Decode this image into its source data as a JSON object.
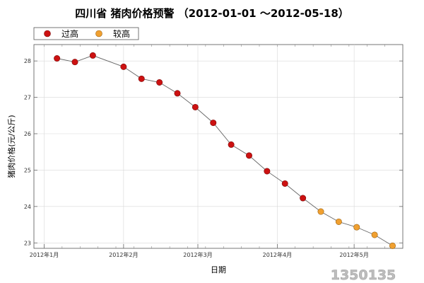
{
  "chart_data": {
    "type": "line",
    "title": "四川省 猪肉价格预警 （2012-01-01 ～2012-05-18）",
    "xlabel": "日期",
    "ylabel": "猪肉价格(元/公斤)",
    "ylim": [
      22.85,
      28.45
    ],
    "y_ticks": [
      "23",
      "24",
      "25",
      "26",
      "27",
      "28"
    ],
    "x_ticks": [
      {
        "label": "2012年1月",
        "date": "2012-01-01"
      },
      {
        "label": "2012年2月",
        "date": "2012-02-01"
      },
      {
        "label": "2012年3月",
        "date": "2012-03-01"
      },
      {
        "label": "2012年4月",
        "date": "2012-04-01"
      },
      {
        "label": "2012年5月",
        "date": "2012-05-01"
      }
    ],
    "grid": true,
    "legend": "top-left",
    "levels": [
      {
        "name": "过高",
        "color": "#cc1111"
      },
      {
        "name": "较高",
        "color": "#f0a030"
      }
    ],
    "series": [
      {
        "points": [
          {
            "date": "2012-01-06",
            "value": 28.07,
            "level": 0
          },
          {
            "date": "2012-01-13",
            "value": 27.97,
            "level": 0
          },
          {
            "date": "2012-01-20",
            "value": 28.15,
            "level": 0
          },
          {
            "date": "2012-02-01",
            "value": 27.84,
            "level": 0
          },
          {
            "date": "2012-02-08",
            "value": 27.51,
            "level": 0
          },
          {
            "date": "2012-02-15",
            "value": 27.41,
            "level": 0
          },
          {
            "date": "2012-02-22",
            "value": 27.11,
            "level": 0
          },
          {
            "date": "2012-02-29",
            "value": 26.73,
            "level": 0
          },
          {
            "date": "2012-03-07",
            "value": 26.3,
            "level": 0
          },
          {
            "date": "2012-03-14",
            "value": 25.7,
            "level": 0
          },
          {
            "date": "2012-03-21",
            "value": 25.4,
            "level": 0
          },
          {
            "date": "2012-03-28",
            "value": 24.97,
            "level": 0
          },
          {
            "date": "2012-04-04",
            "value": 24.63,
            "level": 0
          },
          {
            "date": "2012-04-11",
            "value": 24.23,
            "level": 0
          },
          {
            "date": "2012-04-18",
            "value": 23.86,
            "level": 1
          },
          {
            "date": "2012-04-25",
            "value": 23.58,
            "level": 1
          },
          {
            "date": "2012-05-02",
            "value": 23.43,
            "level": 1
          },
          {
            "date": "2012-05-09",
            "value": 23.22,
            "level": 1
          },
          {
            "date": "2012-05-16",
            "value": 22.92,
            "level": 1
          }
        ]
      }
    ]
  },
  "watermark": "1350135"
}
